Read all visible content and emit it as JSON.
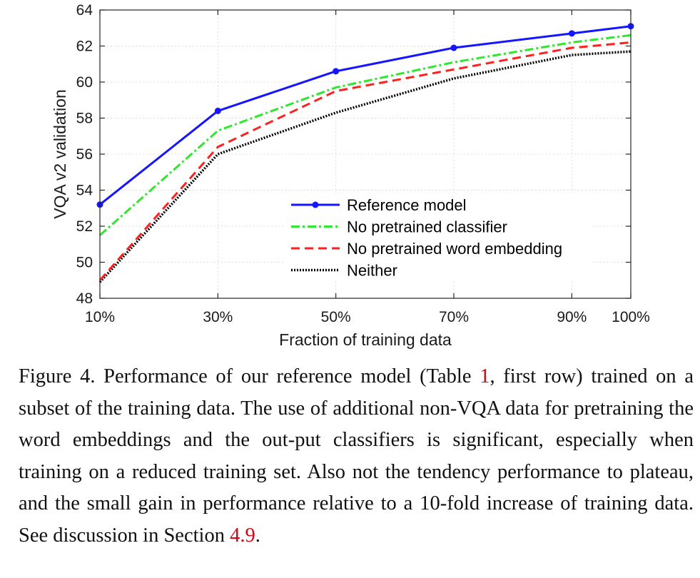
{
  "chart_data": {
    "type": "line",
    "x_categories": [
      "10%",
      "30%",
      "50%",
      "70%",
      "90%",
      "100%"
    ],
    "x_values": [
      10,
      30,
      50,
      70,
      90,
      100
    ],
    "xlim": [
      10,
      100
    ],
    "ylim": [
      48,
      64
    ],
    "y_ticks": [
      48,
      50,
      52,
      54,
      56,
      58,
      60,
      62,
      64
    ],
    "xlabel": "Fraction of training data",
    "ylabel": "VQA v2  validation",
    "grid": true,
    "legend_position": "lower-right",
    "series": [
      {
        "name": "Reference model",
        "color": "#1515ff",
        "style": "solid-markers",
        "values": [
          53.2,
          58.4,
          60.6,
          61.9,
          62.7,
          63.1
        ]
      },
      {
        "name": "No pretrained classifier",
        "color": "#2ee82e",
        "style": "dash-dot",
        "values": [
          51.5,
          57.3,
          59.7,
          61.1,
          62.2,
          62.6
        ]
      },
      {
        "name": "No pretrained word embedding",
        "color": "#ff2020",
        "style": "dashed",
        "values": [
          49.0,
          56.4,
          59.5,
          60.7,
          61.9,
          62.2
        ]
      },
      {
        "name": "Neither",
        "color": "#000000",
        "style": "dotted",
        "values": [
          48.9,
          56.0,
          58.3,
          60.2,
          61.5,
          61.7
        ]
      }
    ]
  },
  "caption": {
    "p1": "Figure 4. Performance of our reference model (Table ",
    "ref1": "1",
    "p2": ", first row) trained on a subset of the training data.  The use of additional non-VQA data for pretraining the word embeddings and the out-put classifiers is significant, especially when training on a reduced training set. Also not the tendency performance to plateau, and the small gain in performance relative to a 10-fold increase of training data. See discussion in Section ",
    "ref2": "4.9",
    "p3": "."
  }
}
